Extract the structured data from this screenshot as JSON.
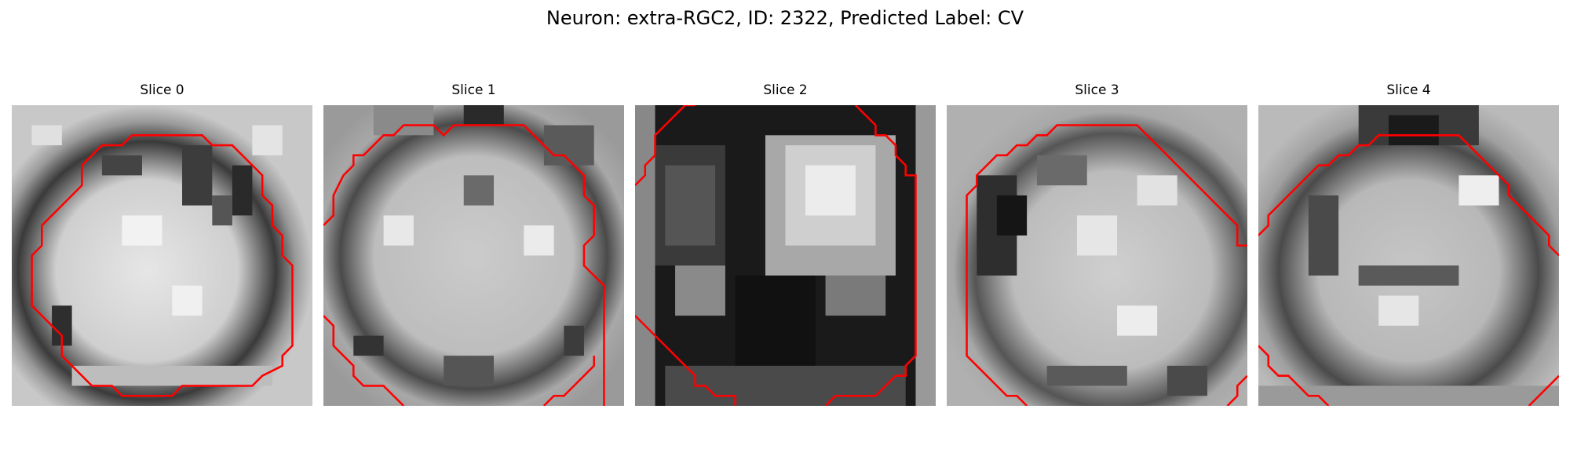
{
  "figure": {
    "title": "Neuron: extra-RGC2, ID: 2322, Predicted Label: CV"
  },
  "colors": {
    "contour": "#ff0000",
    "background": "#ffffff"
  },
  "panels": [
    {
      "title": "Slice 0"
    },
    {
      "title": "Slice 1"
    },
    {
      "title": "Slice 2"
    },
    {
      "title": "Slice 3"
    },
    {
      "title": "Slice 4"
    }
  ]
}
